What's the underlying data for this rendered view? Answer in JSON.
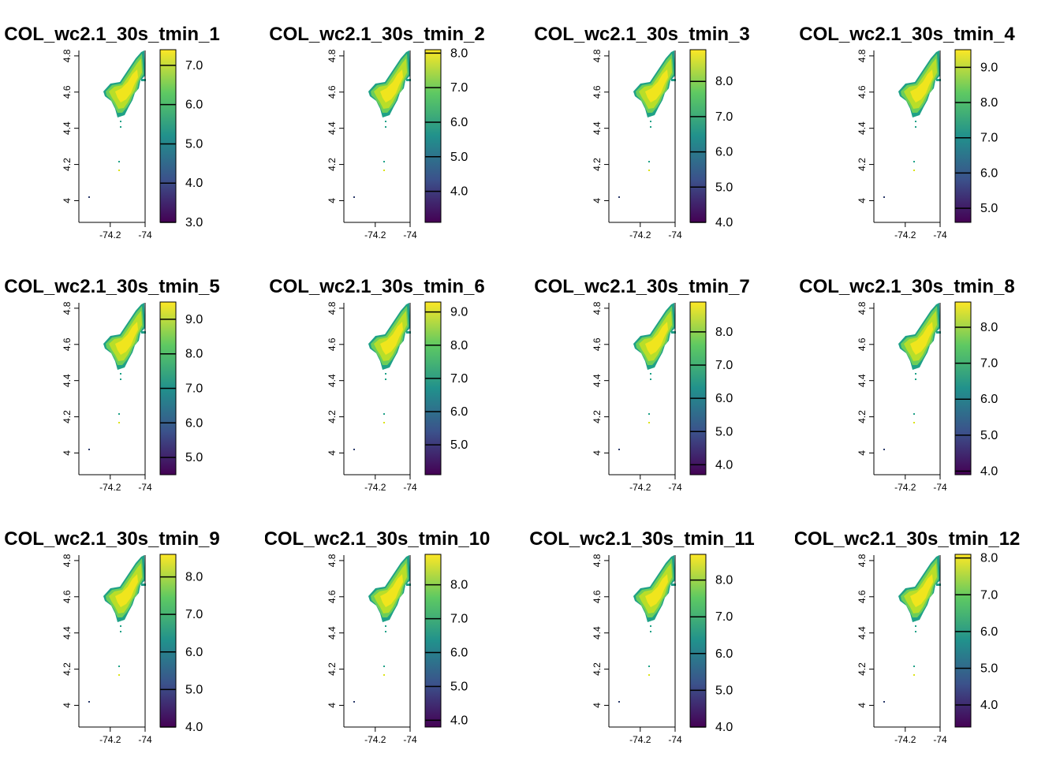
{
  "figure": {
    "layout": "3x4 grid of raster maps",
    "colormap": [
      "#440154",
      "#3b528b",
      "#21918c",
      "#5ec962",
      "#fde725"
    ],
    "map_fill_colors": {
      "ring": "#1fa187",
      "band": "#6cce59",
      "body": "#b8de29",
      "core": "#dce319",
      "hot": "#f0e51d",
      "east_edge": "#1f9e89"
    }
  },
  "chart_data": [
    {
      "type": "heatmap",
      "title": "COL_wc2.1_30s_tmin_1",
      "xticks": [
        "-74.2",
        "-74"
      ],
      "yticks": [
        "4",
        "4.2",
        "4.4",
        "4.6",
        "4.8"
      ],
      "xlim": [
        -74.38,
        -74.0
      ],
      "ylim": [
        3.88,
        4.83
      ],
      "legend": {
        "ticks": [
          "3.0",
          "4.0",
          "5.0",
          "6.0",
          "7.0"
        ],
        "values": [
          3,
          4,
          5,
          6,
          7
        ],
        "range": [
          3.0,
          7.4
        ]
      }
    },
    {
      "type": "heatmap",
      "title": "COL_wc2.1_30s_tmin_2",
      "xticks": [
        "-74.2",
        "-74"
      ],
      "yticks": [
        "4",
        "4.2",
        "4.4",
        "4.6",
        "4.8"
      ],
      "xlim": [
        -74.38,
        -74.0
      ],
      "ylim": [
        3.88,
        4.83
      ],
      "legend": {
        "ticks": [
          "4.0",
          "5.0",
          "6.0",
          "7.0",
          "8.0"
        ],
        "values": [
          4,
          5,
          6,
          7,
          8
        ],
        "range": [
          3.1,
          8.1
        ]
      }
    },
    {
      "type": "heatmap",
      "title": "COL_wc2.1_30s_tmin_3",
      "xticks": [
        "-74.2",
        "-74"
      ],
      "yticks": [
        "4",
        "4.2",
        "4.4",
        "4.6",
        "4.8"
      ],
      "xlim": [
        -74.38,
        -74.0
      ],
      "ylim": [
        3.88,
        4.83
      ],
      "legend": {
        "ticks": [
          "4.0",
          "5.0",
          "6.0",
          "7.0",
          "8.0"
        ],
        "values": [
          4,
          5,
          6,
          7,
          8
        ],
        "range": [
          4.0,
          8.9
        ]
      }
    },
    {
      "type": "heatmap",
      "title": "COL_wc2.1_30s_tmin_4",
      "xticks": [
        "-74.2",
        "-74"
      ],
      "yticks": [
        "4",
        "4.2",
        "4.4",
        "4.6",
        "4.8"
      ],
      "xlim": [
        -74.38,
        -74.0
      ],
      "ylim": [
        3.88,
        4.83
      ],
      "legend": {
        "ticks": [
          "5.0",
          "6.0",
          "7.0",
          "8.0",
          "9.0"
        ],
        "values": [
          5,
          6,
          7,
          8,
          9
        ],
        "range": [
          4.6,
          9.5
        ]
      }
    },
    {
      "type": "heatmap",
      "title": "COL_wc2.1_30s_tmin_5",
      "xticks": [
        "-74.2",
        "-74"
      ],
      "yticks": [
        "4",
        "4.2",
        "4.4",
        "4.6",
        "4.8"
      ],
      "xlim": [
        -74.38,
        -74.0
      ],
      "ylim": [
        3.88,
        4.83
      ],
      "legend": {
        "ticks": [
          "5.0",
          "6.0",
          "7.0",
          "8.0",
          "9.0"
        ],
        "values": [
          5,
          6,
          7,
          8,
          9
        ],
        "range": [
          4.5,
          9.5
        ]
      }
    },
    {
      "type": "heatmap",
      "title": "COL_wc2.1_30s_tmin_6",
      "xticks": [
        "-74.2",
        "-74"
      ],
      "yticks": [
        "4",
        "4.2",
        "4.4",
        "4.6",
        "4.8"
      ],
      "xlim": [
        -74.38,
        -74.0
      ],
      "ylim": [
        3.88,
        4.83
      ],
      "legend": {
        "ticks": [
          "5.0",
          "6.0",
          "7.0",
          "8.0",
          "9.0"
        ],
        "values": [
          5,
          6,
          7,
          8,
          9
        ],
        "range": [
          4.1,
          9.3
        ]
      }
    },
    {
      "type": "heatmap",
      "title": "COL_wc2.1_30s_tmin_7",
      "xticks": [
        "-74.2",
        "-74"
      ],
      "yticks": [
        "4",
        "4.2",
        "4.4",
        "4.6",
        "4.8"
      ],
      "xlim": [
        -74.38,
        -74.0
      ],
      "ylim": [
        3.88,
        4.83
      ],
      "legend": {
        "ticks": [
          "4.0",
          "5.0",
          "6.0",
          "7.0",
          "8.0"
        ],
        "values": [
          4,
          5,
          6,
          7,
          8
        ],
        "range": [
          3.7,
          8.9
        ]
      }
    },
    {
      "type": "heatmap",
      "title": "COL_wc2.1_30s_tmin_8",
      "xticks": [
        "-74.2",
        "-74"
      ],
      "yticks": [
        "4",
        "4.2",
        "4.4",
        "4.6",
        "4.8"
      ],
      "xlim": [
        -74.38,
        -74.0
      ],
      "ylim": [
        3.88,
        4.83
      ],
      "legend": {
        "ticks": [
          "4.0",
          "5.0",
          "6.0",
          "7.0",
          "8.0"
        ],
        "values": [
          4,
          5,
          6,
          7,
          8
        ],
        "range": [
          3.9,
          8.7
        ]
      }
    },
    {
      "type": "heatmap",
      "title": "COL_wc2.1_30s_tmin_9",
      "xticks": [
        "-74.2",
        "-74"
      ],
      "yticks": [
        "4",
        "4.2",
        "4.4",
        "4.6",
        "4.8"
      ],
      "xlim": [
        -74.38,
        -74.0
      ],
      "ylim": [
        3.88,
        4.83
      ],
      "legend": {
        "ticks": [
          "4.0",
          "5.0",
          "6.0",
          "7.0",
          "8.0"
        ],
        "values": [
          4,
          5,
          6,
          7,
          8
        ],
        "range": [
          4.0,
          8.6
        ]
      }
    },
    {
      "type": "heatmap",
      "title": "COL_wc2.1_30s_tmin_10",
      "xticks": [
        "-74.2",
        "-74"
      ],
      "yticks": [
        "4",
        "4.2",
        "4.4",
        "4.6",
        "4.8"
      ],
      "xlim": [
        -74.38,
        -74.0
      ],
      "ylim": [
        3.88,
        4.83
      ],
      "legend": {
        "ticks": [
          "4.0",
          "5.0",
          "6.0",
          "7.0",
          "8.0"
        ],
        "values": [
          4,
          5,
          6,
          7,
          8
        ],
        "range": [
          3.8,
          8.9
        ]
      }
    },
    {
      "type": "heatmap",
      "title": "COL_wc2.1_30s_tmin_11",
      "xticks": [
        "-74.2",
        "-74"
      ],
      "yticks": [
        "4",
        "4.2",
        "4.4",
        "4.6",
        "4.8"
      ],
      "xlim": [
        -74.38,
        -74.0
      ],
      "ylim": [
        3.88,
        4.83
      ],
      "legend": {
        "ticks": [
          "4.0",
          "5.0",
          "6.0",
          "7.0",
          "8.0"
        ],
        "values": [
          4,
          5,
          6,
          7,
          8
        ],
        "range": [
          4.0,
          8.7
        ]
      }
    },
    {
      "type": "heatmap",
      "title": "COL_wc2.1_30s_tmin_12",
      "xticks": [
        "-74.2",
        "-74"
      ],
      "yticks": [
        "4",
        "4.2",
        "4.4",
        "4.6",
        "4.8"
      ],
      "xlim": [
        -74.38,
        -74.0
      ],
      "ylim": [
        3.88,
        4.83
      ],
      "legend": {
        "ticks": [
          "4.0",
          "5.0",
          "6.0",
          "7.0",
          "8.0"
        ],
        "values": [
          4,
          5,
          6,
          7,
          8
        ],
        "range": [
          3.4,
          8.1
        ]
      }
    }
  ]
}
